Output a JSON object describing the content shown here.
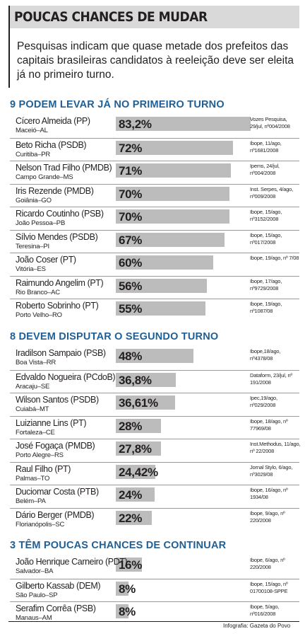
{
  "title": "POUCAS CHANCES DE MUDAR",
  "subtitle": "Pesquisas indicam que quase metade dos prefeitos das capitais brasileiras candidatos à reeleição deve ser eleita já no primeiro turno.",
  "credit": "Infografia: Gazeta do Povo",
  "colors": {
    "bar": "#bcbcbc",
    "section_title": "#1f5f95",
    "title_bg": "#d9d9d9"
  },
  "chart_data": [
    {
      "type": "bar",
      "title": "9 PODEM LEVAR JÁ NO PRIMEIRO TURNO",
      "xlim": [
        0,
        100
      ],
      "rows": [
        {
          "name": "Cícero Almeida (PP)",
          "city": "Maceió–AL",
          "label": "83,2%",
          "value": 83.2,
          "source": "Vozes Pesquisa, 29/jul, nº004/2008"
        },
        {
          "name": "Beto Richa (PSDB)",
          "city": "Curitiba–PR",
          "label": "72%",
          "value": 72,
          "source": "Ibope, 11/ago, nº1681/2008"
        },
        {
          "name": "Nelson Trad Filho (PMDB)",
          "city": "Campo Grande–MS",
          "label": "71%",
          "value": 71,
          "source": "Ipems, 24/jul, nº004/2008"
        },
        {
          "name": "Iris Rezende (PMDB)",
          "city": "Goiânia–GO",
          "label": "70%",
          "value": 70,
          "source": "Inst. Serpes, 4/ago, nº009/2008"
        },
        {
          "name": "Ricardo Coutinho (PSB)",
          "city": "João Pessoa–PB",
          "label": "70%",
          "value": 70,
          "source": "Ibope, 15/ago, nº3152/2008"
        },
        {
          "name": "Sílvio Mendes (PSDB)",
          "city": "Teresina–PI",
          "label": "67%",
          "value": 67,
          "source": "Ibope, 15/ago, nº017/2008"
        },
        {
          "name": "João Coser (PT)",
          "city": "Vitória–ES",
          "label": "60%",
          "value": 60,
          "source": "Ibope, 19/ago, nº 7/08"
        },
        {
          "name": "Raimundo Angelim (PT)",
          "city": "Rio Branco–AC",
          "label": "56%",
          "value": 56,
          "source": "Ibope, 17/ago, nº9729/2008"
        },
        {
          "name": "Roberto Sobrinho (PT)",
          "city": "Porto Velho–RO",
          "label": "55%",
          "value": 55,
          "source": "Ibope, 19/ago, nº1087/08"
        }
      ]
    },
    {
      "type": "bar",
      "title": "8 DEVEM DISPUTAR O SEGUNDO TURNO",
      "xlim": [
        0,
        100
      ],
      "rows": [
        {
          "name": "Iradilson Sampaio (PSB)",
          "city": "Boa Vista–RR",
          "label": "48%",
          "value": 48,
          "source": "Ibope,18/ago, nº4378/08"
        },
        {
          "name": "Edvaldo Nogueira (PCdoB)",
          "city": "Aracaju–SE",
          "label": "36,8%",
          "value": 36.8,
          "source": "Dataform, 23/jul, nº 191/2008"
        },
        {
          "name": "Wilson Santos (PSDB)",
          "city": "Cuiabá–MT",
          "label": "36,61%",
          "value": 36.61,
          "source": "Ipec,19/ago, nº029/2008"
        },
        {
          "name": "Luizianne Lins (PT)",
          "city": "Fortaleza–CE",
          "label": "28%",
          "value": 28,
          "source": "Ibope, 18/ago, nº 77969/08"
        },
        {
          "name": "José Fogaça (PMDB)",
          "city": "Porto Alegre–RS",
          "label": "27,8%",
          "value": 27.8,
          "source": "Inst.Methodus, 11/ago, nº 22/2008"
        },
        {
          "name": "Raul Filho (PT)",
          "city": "Palmas–TO",
          "label": "24,42%",
          "value": 24.42,
          "source": "Jornal Stylo, 6/ago, nº3029/08"
        },
        {
          "name": "Duciomar Costa (PTB)",
          "city": "Belém–PA",
          "label": "24%",
          "value": 24,
          "source": "Ibope, 16/ago, nº 1934/08"
        },
        {
          "name": "Dário Berger (PMDB)",
          "city": "Florianópolis–SC",
          "label": "22%",
          "value": 22,
          "source": "Ibope, 9/ago, nº 220/2008"
        }
      ]
    },
    {
      "type": "bar",
      "title": "3 TÊM POUCAS CHANCES DE CONTINUAR",
      "xlim": [
        0,
        100
      ],
      "rows": [
        {
          "name": "João Henrique Carneiro (PDT)",
          "city": "Salvador–BA",
          "label": "16%",
          "value": 16,
          "source": "Ibope, 6/ago, nº 220/2008"
        },
        {
          "name": "Gilberto Kassab (DEM)",
          "city": "São Paulo–SP",
          "label": "8%",
          "value": 8,
          "source": "Ibope, 15/ago, nº 01700108-SPPE"
        },
        {
          "name": "Serafim Corrêa (PSB)",
          "city": "Manaus–AM",
          "label": "8%",
          "value": 8,
          "source": "Ibope, 5/ago, nº016/2008"
        }
      ]
    }
  ]
}
